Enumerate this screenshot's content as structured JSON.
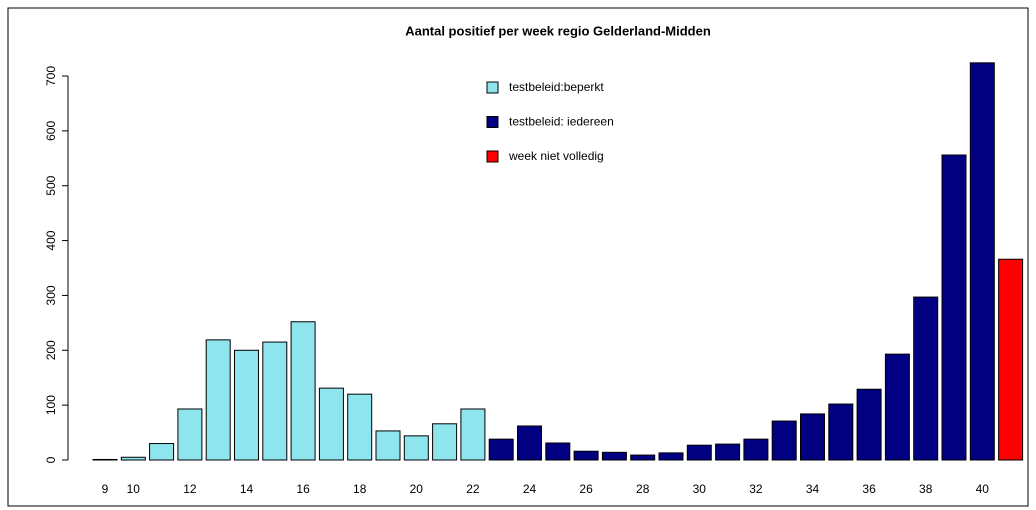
{
  "chart_data": {
    "type": "bar",
    "title": "Aantal positief per week regio Gelderland-Midden",
    "categories": [
      9,
      10,
      null,
      12,
      null,
      14,
      null,
      16,
      null,
      18,
      null,
      20,
      null,
      22,
      null,
      24,
      null,
      26,
      null,
      28,
      null,
      30,
      null,
      32,
      null,
      34,
      null,
      36,
      null,
      38,
      null,
      40,
      null
    ],
    "series": [
      {
        "name": "testbeleid:beperkt",
        "color": "#8ee5ee",
        "values": [
          1,
          5,
          30,
          93,
          219,
          200,
          215,
          252,
          131,
          120,
          53,
          44,
          66,
          93,
          null,
          null,
          null,
          null,
          null,
          null,
          null,
          null,
          null,
          null,
          null,
          null,
          null,
          null,
          null,
          null,
          null,
          null,
          null
        ]
      },
      {
        "name": "testbeleid: iedereen",
        "color": "#000080",
        "values": [
          null,
          null,
          null,
          null,
          null,
          null,
          null,
          null,
          null,
          null,
          null,
          null,
          null,
          null,
          38,
          62,
          31,
          16,
          14,
          9,
          13,
          27,
          29,
          38,
          71,
          84,
          102,
          129,
          193,
          297,
          556,
          724,
          null
        ]
      },
      {
        "name": "week niet volledig",
        "color": "#ff0000",
        "values": [
          null,
          null,
          null,
          null,
          null,
          null,
          null,
          null,
          null,
          null,
          null,
          null,
          null,
          null,
          null,
          null,
          null,
          null,
          null,
          null,
          null,
          null,
          null,
          null,
          null,
          null,
          null,
          null,
          null,
          null,
          null,
          null,
          366
        ]
      }
    ],
    "ylim": [
      0,
      700
    ],
    "yticks": [
      0,
      100,
      200,
      300,
      400,
      500,
      600,
      700
    ]
  }
}
